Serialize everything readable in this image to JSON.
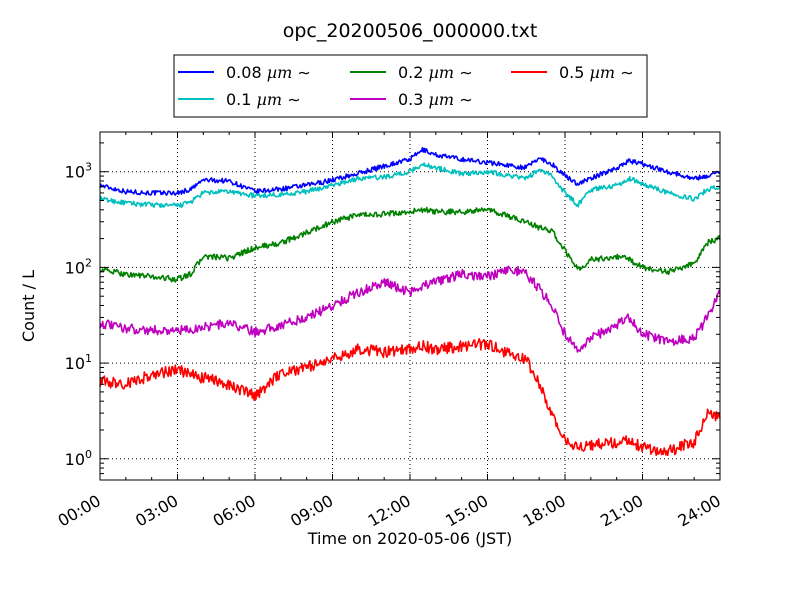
{
  "chart_data": {
    "type": "line",
    "title": "opc_20200506_000000.txt",
    "xlabel": "Time on 2020-05-06 (JST)",
    "ylabel": "Count / L",
    "x_ticks": [
      "00:00",
      "03:00",
      "06:00",
      "09:00",
      "12:00",
      "15:00",
      "18:00",
      "21:00",
      "24:00"
    ],
    "xlim": [
      "00:00",
      "24:00"
    ],
    "y_scale": "log",
    "ylim": [
      0.6,
      2600
    ],
    "y_ticks": [
      {
        "value": 1,
        "base": "10",
        "exp": "0"
      },
      {
        "value": 10,
        "base": "10",
        "exp": "1"
      },
      {
        "value": 100,
        "base": "10",
        "exp": "2"
      },
      {
        "value": 1000,
        "base": "10",
        "exp": "3"
      }
    ],
    "grid": true,
    "legend_position": "top",
    "hours": [
      0,
      1,
      2,
      3,
      3.5,
      4,
      5,
      6,
      7,
      8,
      9,
      10,
      11,
      12,
      12.5,
      13,
      14,
      15,
      16,
      16.5,
      17,
      17.5,
      18,
      18.5,
      19,
      20,
      20.5,
      21,
      22,
      23,
      23.5,
      24
    ],
    "series": [
      {
        "name": "0.08 µm ∼",
        "label_size": "0.08",
        "label_unit": "µm",
        "label_tilde": "∼",
        "color": "#0000ff",
        "values": [
          720,
          620,
          600,
          600,
          650,
          820,
          800,
          620,
          660,
          720,
          820,
          960,
          1150,
          1350,
          1700,
          1500,
          1350,
          1250,
          1150,
          1100,
          1400,
          1200,
          900,
          750,
          850,
          1100,
          1300,
          1200,
          1000,
          850,
          900,
          1000
        ]
      },
      {
        "name": "0.1 µm ∼",
        "label_size": "0.1",
        "label_unit": "µm",
        "label_tilde": "∼",
        "color": "#00bfbf",
        "values": [
          520,
          470,
          450,
          440,
          480,
          600,
          620,
          560,
          580,
          620,
          720,
          850,
          880,
          1000,
          1200,
          1100,
          950,
          1000,
          900,
          850,
          1050,
          900,
          600,
          450,
          650,
          720,
          850,
          750,
          600,
          520,
          650,
          700
        ]
      },
      {
        "name": "0.2 µm ∼",
        "label_size": "0.2",
        "label_unit": "µm",
        "label_tilde": "∼",
        "color": "#008000",
        "values": [
          95,
          85,
          80,
          75,
          85,
          130,
          125,
          160,
          180,
          230,
          300,
          350,
          360,
          380,
          400,
          380,
          380,
          400,
          330,
          300,
          260,
          240,
          150,
          95,
          120,
          130,
          120,
          100,
          90,
          110,
          180,
          200
        ]
      },
      {
        "name": "0.3 µm ∼",
        "label_size": "0.3",
        "label_unit": "µm",
        "label_tilde": "∼",
        "color": "#bf00bf",
        "values": [
          26,
          23,
          22,
          22,
          22,
          24,
          26,
          21,
          25,
          30,
          40,
          55,
          70,
          55,
          65,
          70,
          85,
          80,
          95,
          85,
          60,
          40,
          20,
          13,
          18,
          25,
          30,
          20,
          17,
          18,
          30,
          55
        ]
      },
      {
        "name": "0.5 µm ∼",
        "label_size": "0.5",
        "label_unit": "µm",
        "label_tilde": "∼",
        "color": "#ff0000",
        "values": [
          6.5,
          6,
          7.5,
          8.5,
          7.5,
          7,
          6,
          4.5,
          8,
          9,
          11,
          14,
          13,
          14,
          15,
          14,
          15,
          16,
          12,
          11,
          6,
          3,
          1.5,
          1.3,
          1.4,
          1.5,
          1.6,
          1.3,
          1.2,
          1.5,
          3,
          2.8
        ]
      }
    ]
  }
}
